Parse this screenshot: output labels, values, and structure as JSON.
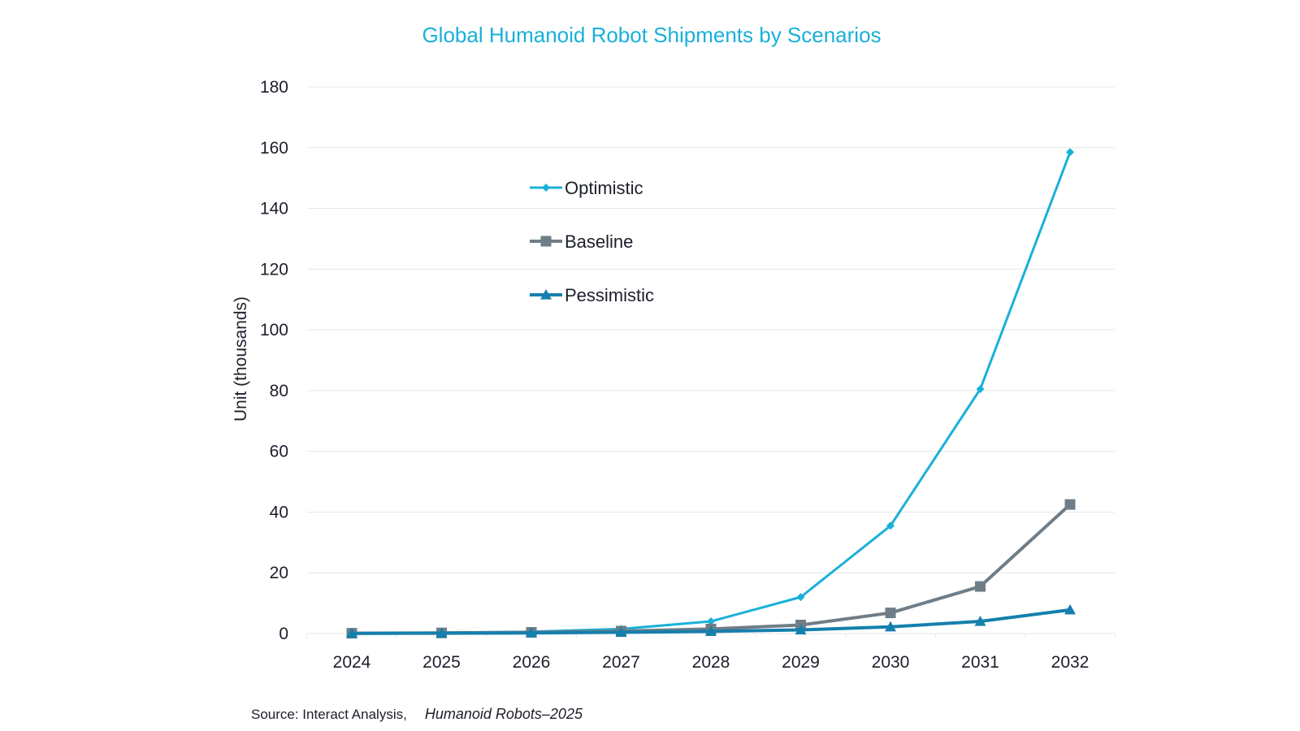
{
  "chart_data": {
    "type": "line",
    "title": "Global Humanoid Robot Shipments by Scenarios",
    "xlabel": "",
    "ylabel": "Unit (thousands)",
    "ylim": [
      0,
      180
    ],
    "yticks": [
      0,
      20,
      40,
      60,
      80,
      100,
      120,
      140,
      160,
      180
    ],
    "categories": [
      "2024",
      "2025",
      "2026",
      "2027",
      "2028",
      "2029",
      "2030",
      "2031",
      "2032"
    ],
    "grid": true,
    "legend_position": "upper-left-center",
    "series": [
      {
        "name": "Optimistic",
        "color": "#19b0d8",
        "marker": "diamond",
        "values": [
          0.1,
          0.3,
          0.6,
          1.5,
          4,
          12,
          35.5,
          80.5,
          158.5
        ]
      },
      {
        "name": "Baseline",
        "color": "#6f7d87",
        "marker": "square",
        "values": [
          0.1,
          0.2,
          0.4,
          0.8,
          1.5,
          2.8,
          6.8,
          15.5,
          42.5
        ]
      },
      {
        "name": "Pessimistic",
        "color": "#157fad",
        "marker": "triangle",
        "values": [
          0.05,
          0.1,
          0.2,
          0.4,
          0.7,
          1.2,
          2.2,
          4,
          7.8
        ]
      }
    ]
  },
  "source": {
    "label": "Source: Interact Analysis,",
    "publication": "Humanoid Robots–2025"
  }
}
